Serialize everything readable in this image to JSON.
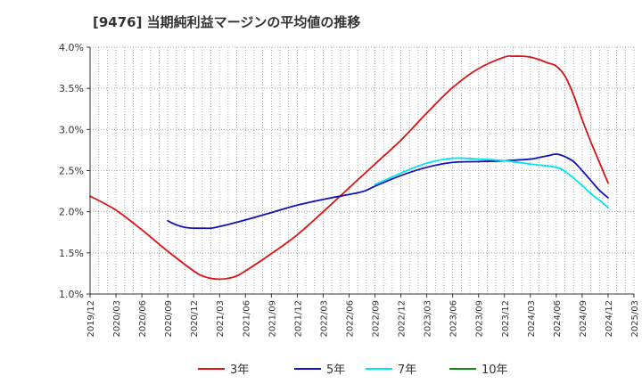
{
  "title": "[9476]  当期純利益マージンの平均値の推移",
  "chart_data": {
    "type": "line",
    "title": "[9476]  当期純利益マージンの平均値の推移",
    "xlabel": "",
    "ylabel": "",
    "x_ticks": [
      "2019/12",
      "2020/03",
      "2020/06",
      "2020/09",
      "2020/12",
      "2021/03",
      "2021/06",
      "2021/09",
      "2021/12",
      "2022/03",
      "2022/06",
      "2022/09",
      "2022/12",
      "2023/03",
      "2023/06",
      "2023/09",
      "2023/12",
      "2024/03",
      "2024/06",
      "2024/09",
      "2024/12",
      "2025/03"
    ],
    "y_ticks": [
      "1.0%",
      "1.5%",
      "2.0%",
      "2.5%",
      "3.0%",
      "3.5%",
      "4.0%"
    ],
    "ylim": [
      1.0,
      4.0
    ],
    "grid": true,
    "legend_position": "bottom",
    "series": [
      {
        "name": "3年",
        "color": "#dd1111",
        "x": [
          "2019/12",
          "2020/03",
          "2020/06",
          "2020/09",
          "2020/12",
          "2021/01",
          "2021/02",
          "2021/03",
          "2021/04",
          "2021/05",
          "2021/06",
          "2021/09",
          "2021/12",
          "2022/03",
          "2022/06",
          "2022/09",
          "2022/12",
          "2023/03",
          "2023/06",
          "2023/09",
          "2023/12",
          "2024/01",
          "2024/02",
          "2024/03",
          "2024/04",
          "2024/05",
          "2024/06",
          "2024/07",
          "2024/08",
          "2024/09",
          "2024/10",
          "2024/11",
          "2024/12"
        ],
        "values": [
          2.19,
          2.02,
          1.78,
          1.52,
          1.28,
          1.22,
          1.19,
          1.18,
          1.19,
          1.22,
          1.28,
          1.49,
          1.72,
          2.0,
          2.29,
          2.58,
          2.87,
          3.2,
          3.51,
          3.74,
          3.88,
          3.89,
          3.89,
          3.88,
          3.85,
          3.81,
          3.77,
          3.65,
          3.42,
          3.12,
          2.85,
          2.6,
          2.35
        ]
      },
      {
        "name": "5年",
        "color": "#1111bb",
        "x": [
          "2020/09",
          "2020/10",
          "2020/11",
          "2020/12",
          "2021/01",
          "2021/02",
          "2021/03",
          "2021/06",
          "2021/09",
          "2021/12",
          "2022/03",
          "2022/06",
          "2022/07",
          "2022/08",
          "2022/09",
          "2022/12",
          "2023/03",
          "2023/06",
          "2023/09",
          "2023/12",
          "2024/03",
          "2024/04",
          "2024/05",
          "2024/06",
          "2024/07",
          "2024/08",
          "2024/09",
          "2024/10",
          "2024/11",
          "2024/12"
        ],
        "values": [
          1.89,
          1.84,
          1.81,
          1.8,
          1.8,
          1.8,
          1.82,
          1.9,
          1.99,
          2.08,
          2.15,
          2.21,
          2.23,
          2.26,
          2.31,
          2.44,
          2.54,
          2.6,
          2.61,
          2.62,
          2.64,
          2.66,
          2.68,
          2.7,
          2.67,
          2.61,
          2.5,
          2.38,
          2.26,
          2.17
        ]
      },
      {
        "name": "7年",
        "color": "#00e5ee",
        "x": [
          "2022/09",
          "2022/12",
          "2023/03",
          "2023/06",
          "2023/09",
          "2023/12",
          "2024/03",
          "2024/06",
          "2024/07",
          "2024/08",
          "2024/09",
          "2024/10",
          "2024/11",
          "2024/12"
        ],
        "values": [
          2.33,
          2.47,
          2.59,
          2.65,
          2.64,
          2.62,
          2.58,
          2.54,
          2.49,
          2.41,
          2.32,
          2.22,
          2.14,
          2.05
        ]
      },
      {
        "name": "10年",
        "color": "#118811",
        "x": [],
        "values": []
      }
    ]
  }
}
